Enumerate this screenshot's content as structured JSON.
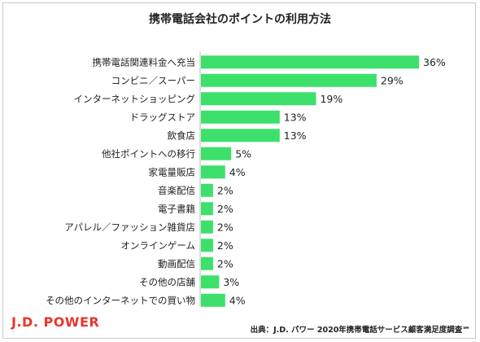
{
  "chart_data": {
    "type": "bar",
    "orientation": "horizontal",
    "title": "携帯電話会社のポイントの利用方法",
    "categories": [
      "携帯電話関連料金へ充当",
      "コンビニ／スーパー",
      "インターネットショッピング",
      "ドラッグストア",
      "飲食店",
      "他社ポイントへの移行",
      "家電量販店",
      "音楽配信",
      "電子書籍",
      "アパレル／ファッション雑貨店",
      "オンラインゲーム",
      "動画配信",
      "その他の店舗",
      "その他のインターネットでの買い物"
    ],
    "values": [
      36,
      29,
      19,
      13,
      13,
      5,
      4,
      2,
      2,
      2,
      2,
      2,
      3,
      4
    ],
    "value_labels": [
      "36%",
      "29%",
      "19%",
      "13%",
      "13%",
      "5%",
      "4%",
      "2%",
      "2%",
      "2%",
      "2%",
      "2%",
      "3%",
      "4%"
    ],
    "bar_color": "#3de06a",
    "xlim": [
      0,
      36
    ],
    "grid": false,
    "legend": "none"
  },
  "footer": {
    "logo": "J.D. POWER",
    "source": "出典：J.D. パワー 2020年携帯電話サービス顧客満足度調査℠"
  },
  "colors": {
    "logo": "#e8362d"
  }
}
